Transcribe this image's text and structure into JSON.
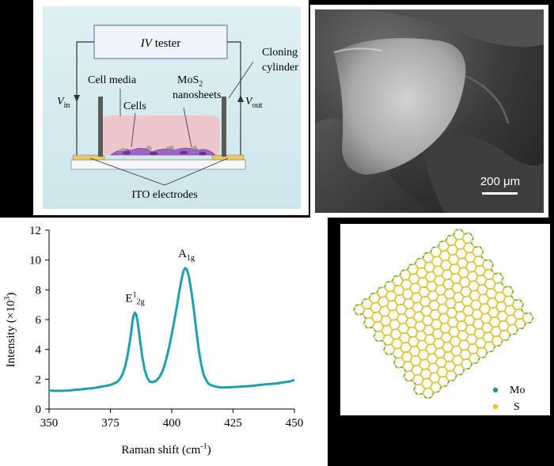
{
  "schematic": {
    "tester_italic": "IV",
    "tester_rest": " tester",
    "cloning": [
      "Cloning",
      "cylinder"
    ],
    "cell_media": "Cell media",
    "cells": "Cells",
    "mos2": {
      "base": "MoS",
      "sub": "2"
    },
    "nanosheets": "nanosheets",
    "vin": {
      "base": "V",
      "sub": "in"
    },
    "vout": {
      "base": "V",
      "sub": "out"
    },
    "ito": "ITO electrodes"
  },
  "sem": {
    "scale_text": "200 μm"
  },
  "lattice": {
    "legend": [
      {
        "label": "Mo",
        "color": "#1a9a9a"
      },
      {
        "label": "S",
        "color": "#e9c62a"
      }
    ]
  },
  "chart_data": {
    "type": "line",
    "xlabel": "Raman shift (cm",
    "xlabel_sup": "-1",
    "xlabel_end": ")",
    "ylabel": "Intensity (×10",
    "ylabel_sup": "3",
    "ylabel_end": ")",
    "xlim": [
      350,
      450
    ],
    "ylim": [
      0,
      12
    ],
    "xticks": [
      350,
      375,
      400,
      425,
      450
    ],
    "yticks": [
      0,
      2,
      4,
      6,
      8,
      10,
      12
    ],
    "grid": false,
    "line_color": "#1fa0ac",
    "annotations": [
      {
        "text_base": "E",
        "text_sup": "1",
        "text_sub": "2g",
        "x": 385,
        "y": 7.2
      },
      {
        "text_base": "A",
        "text_sup": "",
        "text_sub": "1g",
        "x": 406,
        "y": 10.2
      }
    ],
    "series": [
      {
        "x": [
          350,
          352,
          355,
          358,
          360,
          363,
          365,
          368,
          370,
          373,
          375,
          377,
          378,
          379,
          380,
          381,
          382,
          383,
          383.5,
          384,
          384.5,
          385,
          385.5,
          386,
          386.5,
          387,
          388,
          389,
          390,
          391,
          392,
          393,
          394,
          395,
          396,
          397,
          398,
          399,
          400,
          401,
          402,
          403,
          404,
          404.5,
          405,
          405.5,
          406,
          406.5,
          407,
          408,
          409,
          410,
          411,
          412,
          413,
          414,
          415,
          416,
          418,
          420,
          422,
          425,
          428,
          430,
          433,
          435,
          438,
          440,
          443,
          445,
          448,
          450
        ],
        "y": [
          1.25,
          1.22,
          1.22,
          1.24,
          1.28,
          1.32,
          1.36,
          1.4,
          1.46,
          1.55,
          1.62,
          1.75,
          1.85,
          2.05,
          2.35,
          2.85,
          3.6,
          4.6,
          5.2,
          5.9,
          6.3,
          6.45,
          6.35,
          5.95,
          5.4,
          4.7,
          3.5,
          2.6,
          2.1,
          1.85,
          1.8,
          1.85,
          1.95,
          2.15,
          2.45,
          2.9,
          3.5,
          4.2,
          5.0,
          5.9,
          6.8,
          7.8,
          8.7,
          9.1,
          9.35,
          9.45,
          9.4,
          9.2,
          8.9,
          7.9,
          6.7,
          5.3,
          4.0,
          3.0,
          2.3,
          1.95,
          1.7,
          1.6,
          1.5,
          1.45,
          1.45,
          1.47,
          1.5,
          1.52,
          1.56,
          1.6,
          1.65,
          1.68,
          1.72,
          1.78,
          1.85,
          1.95
        ]
      }
    ]
  }
}
